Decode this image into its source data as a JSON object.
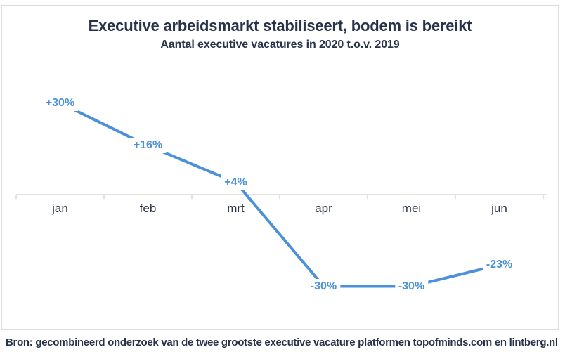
{
  "chart": {
    "title": "Executive arbeidsmarkt stabiliseert, bodem is bereikt",
    "subtitle": "Aantal executive vacatures in 2020 t.o.v. 2019",
    "source": "Bron: gecombineerd onderzoek van de twee grootste executive vacature platformen topofminds.com en lintberg.nl"
  },
  "chart_data": {
    "type": "line",
    "title": "Executive arbeidsmarkt stabiliseert, bodem is bereikt",
    "subtitle": "Aantal executive vacatures in 2020 t.o.v. 2019",
    "categories": [
      "jan",
      "feb",
      "mrt",
      "apr",
      "mei",
      "jun"
    ],
    "values": [
      30,
      16,
      4,
      -30,
      -30,
      -23
    ],
    "point_labels": [
      "+30%",
      "+16%",
      "+4%",
      "-30%",
      "-30%",
      "-23%"
    ],
    "unit": "%",
    "xlabel": "",
    "ylabel": "",
    "ylim": [
      -38,
      38
    ],
    "baseline": 0,
    "grid": false,
    "legend": false,
    "y_axis_shown": false,
    "x_axis_position": "zero-baseline",
    "tick_style": "downward ticks at category boundaries",
    "line_color": "#4a91d9",
    "label_color": "#4a91d9",
    "axis_color": "#d8d8d8",
    "text_color": "#28334a",
    "background_color": "#ffffff"
  }
}
